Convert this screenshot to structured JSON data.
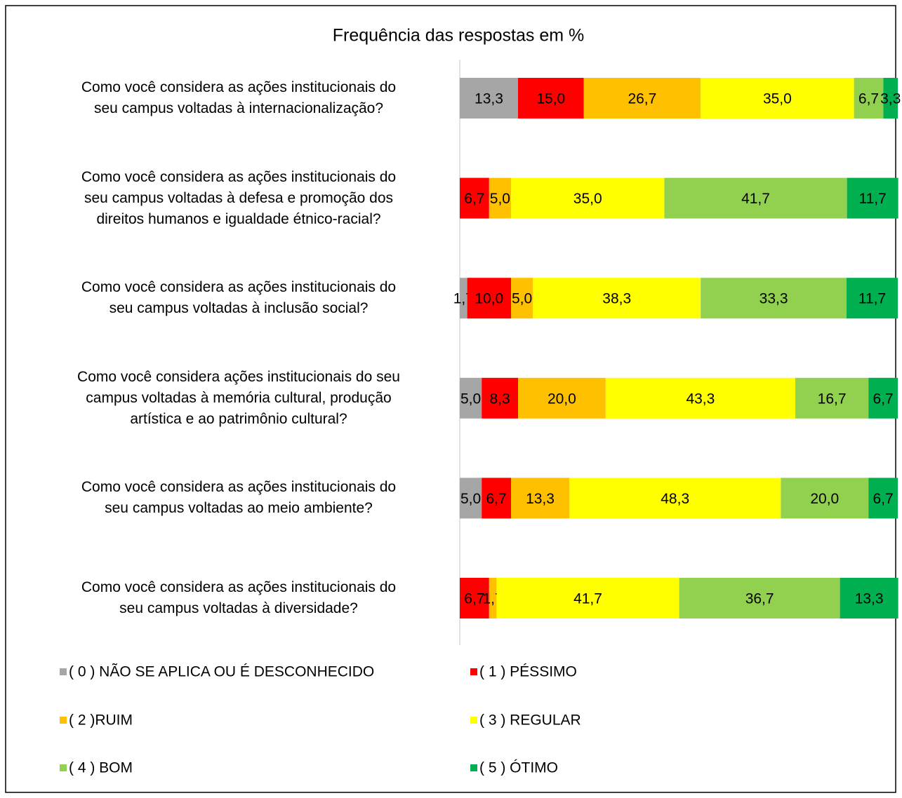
{
  "chart_data": {
    "type": "stacked_bar_horizontal",
    "title": "Frequência das respostas em %",
    "categories": [
      "Como você considera as ações institucionais do\nseu campus  voltadas à internacionalização?",
      "Como você considera as ações institucionais do\nseu campus voltadas à defesa e promoção dos\ndireitos humanos e igualdade étnico-racial?",
      "Como você considera as ações institucionais do\nseu campus voltadas à inclusão social?",
      "Como você considera ações institucionais do seu\ncampus voltadas à memória cultural, produção\nartística e ao patrimônio cultural?",
      "Como você  considera as ações institucionais do\nseu campus voltadas ao meio ambiente?",
      "Como você considera as ações institucionais do\nseu campus voltadas à diversidade?"
    ],
    "xlim": [
      0,
      100
    ],
    "series": [
      {
        "name": "( 0 ) NÃO SE APLICA OU É DESCONHECIDO",
        "color": "#a6a6a6",
        "values": [
          13.3,
          null,
          1.7,
          5.0,
          5.0,
          null
        ],
        "value_labels": [
          "13,3",
          null,
          "1,7",
          "5,0",
          "5,0",
          null
        ]
      },
      {
        "name": "( 1 ) PÉSSIMO",
        "color": "#ff0000",
        "values": [
          15.0,
          6.7,
          10.0,
          8.3,
          6.7,
          6.7
        ],
        "value_labels": [
          "15,0",
          "6,7",
          "10,0",
          "8,3",
          "6,7",
          "6,7"
        ]
      },
      {
        "name": "( 2 )RUIM",
        "color": "#ffc000",
        "values": [
          26.7,
          5.0,
          5.0,
          20.0,
          13.3,
          1.7
        ],
        "value_labels": [
          "26,7",
          "5,0",
          "5,0",
          "20,0",
          "13,3",
          "1,7"
        ]
      },
      {
        "name": "( 3 ) REGULAR",
        "color": "#ffff00",
        "values": [
          35.0,
          35.0,
          38.3,
          43.3,
          48.3,
          41.7
        ],
        "value_labels": [
          "35,0",
          "35,0",
          "38,3",
          "43,3",
          "48,3",
          "41,7"
        ]
      },
      {
        "name": "( 4 ) BOM",
        "color": "#92d050",
        "values": [
          6.7,
          41.7,
          33.3,
          16.7,
          20.0,
          36.7
        ],
        "value_labels": [
          "6,7",
          "41,7",
          "33,3",
          "16,7",
          "20,0",
          "36,7"
        ]
      },
      {
        "name": "( 5 ) ÓTIMO",
        "color": "#00b050",
        "values": [
          3.3,
          11.7,
          11.7,
          6.7,
          6.7,
          13.3
        ],
        "value_labels": [
          "3,3",
          "11,7",
          "11,7",
          "6,7",
          "6,7",
          "13,3"
        ]
      }
    ]
  }
}
